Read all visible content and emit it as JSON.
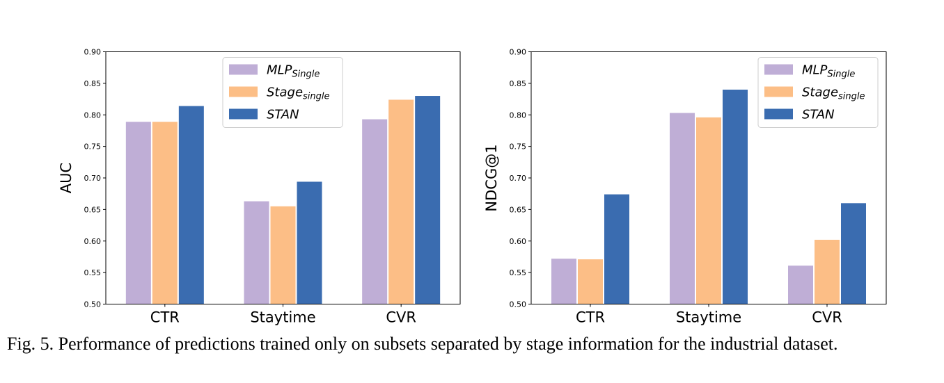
{
  "colors": {
    "MLP_single": "#bfaed6",
    "Stage_single": "#fcbe86",
    "STAN": "#3a6cb0"
  },
  "chart_data": [
    {
      "type": "bar",
      "ylabel": "AUC",
      "xlabel": "",
      "ylim": [
        0.5,
        0.9
      ],
      "yticks": [
        "0.50",
        "0.55",
        "0.60",
        "0.65",
        "0.70",
        "0.75",
        "0.80",
        "0.85",
        "0.90"
      ],
      "categories": [
        "CTR",
        "Staytime",
        "CVR"
      ],
      "legend_position": "top-center",
      "series": [
        {
          "name": "MLP",
          "name_sub": "Single",
          "color": "#bfaed6",
          "values": [
            0.789,
            0.663,
            0.793
          ]
        },
        {
          "name": "Stage",
          "name_sub": "single",
          "color": "#fcbe86",
          "values": [
            0.789,
            0.655,
            0.824
          ]
        },
        {
          "name": "STAN",
          "name_sub": "",
          "color": "#3a6cb0",
          "values": [
            0.814,
            0.694,
            0.83
          ]
        }
      ]
    },
    {
      "type": "bar",
      "ylabel": "NDCG@1",
      "xlabel": "",
      "ylim": [
        0.5,
        0.9
      ],
      "yticks": [
        "0.50",
        "0.55",
        "0.60",
        "0.65",
        "0.70",
        "0.75",
        "0.80",
        "0.85",
        "0.90"
      ],
      "categories": [
        "CTR",
        "Staytime",
        "CVR"
      ],
      "legend_position": "top-right",
      "series": [
        {
          "name": "MLP",
          "name_sub": "Single",
          "color": "#bfaed6",
          "values": [
            0.572,
            0.803,
            0.561
          ]
        },
        {
          "name": "Stage",
          "name_sub": "single",
          "color": "#fcbe86",
          "values": [
            0.571,
            0.796,
            0.602
          ]
        },
        {
          "name": "STAN",
          "name_sub": "",
          "color": "#3a6cb0",
          "values": [
            0.674,
            0.84,
            0.66
          ]
        }
      ]
    }
  ],
  "caption": "Fig. 5.  Performance of predictions trained only on subsets separated by stage information for the industrial dataset."
}
